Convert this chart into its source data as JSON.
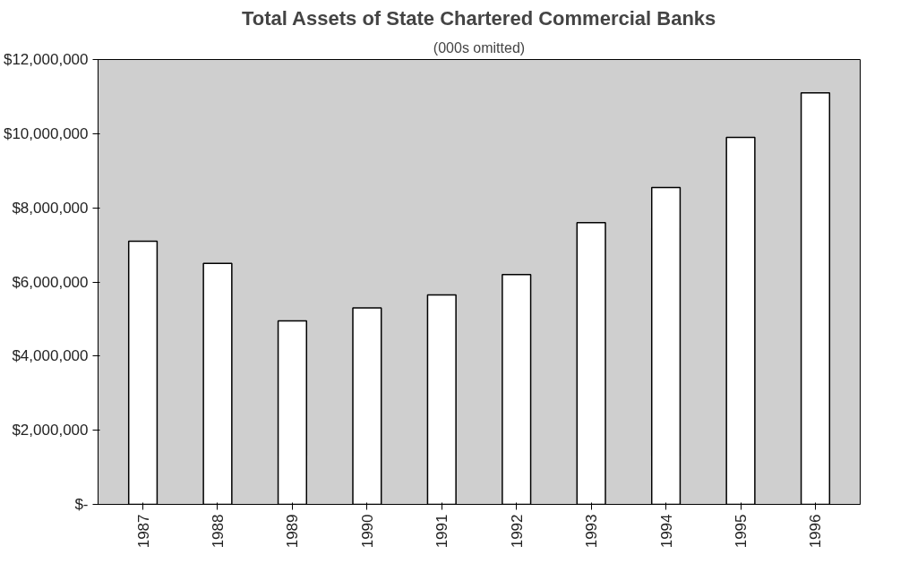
{
  "chart_data": {
    "type": "bar",
    "title": "Total Assets of State Chartered Commercial Banks",
    "subtitle": "(000s omitted)",
    "categories": [
      "1987",
      "1988",
      "1989",
      "1990",
      "1991",
      "1992",
      "1993",
      "1994",
      "1995",
      "1996"
    ],
    "values": [
      7100000,
      6500000,
      4950000,
      5300000,
      5650000,
      6200000,
      7600000,
      8550000,
      9900000,
      11100000
    ],
    "color": "#ffffff",
    "ylim": [
      0,
      12000000
    ],
    "yticks": [
      {
        "value": 0,
        "label": "$-"
      },
      {
        "value": 2000000,
        "label": "$2,000,000"
      },
      {
        "value": 4000000,
        "label": "$4,000,000"
      },
      {
        "value": 6000000,
        "label": "$6,000,000"
      },
      {
        "value": 8000000,
        "label": "$8,000,000"
      },
      {
        "value": 10000000,
        "label": "$10,000,000"
      },
      {
        "value": 12000000,
        "label": "$12,000,000"
      }
    ],
    "grid": false
  }
}
